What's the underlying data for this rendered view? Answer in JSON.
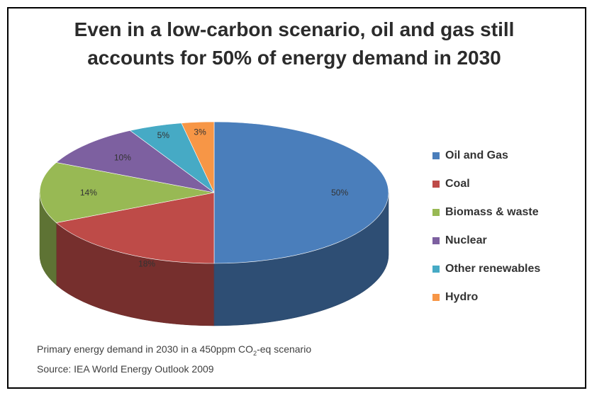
{
  "chart_data": {
    "type": "pie",
    "title_lines": [
      "Even in a low-carbon scenario, oil and gas still",
      "accounts for 50% of energy demand in 2030"
    ],
    "slices": [
      {
        "name": "Oil and Gas",
        "value": 50,
        "label": "50%",
        "color": "#4a7ebb"
      },
      {
        "name": "Coal",
        "value": 18,
        "label": "18%",
        "color": "#be4b48"
      },
      {
        "name": "Biomass & waste",
        "value": 14,
        "label": "14%",
        "color": "#98b954"
      },
      {
        "name": "Nuclear",
        "value": 10,
        "label": "10%",
        "color": "#7d60a0"
      },
      {
        "name": "Other renewables",
        "value": 5,
        "label": "5%",
        "color": "#46aac5"
      },
      {
        "name": "Hydro",
        "value": 3,
        "label": "3%",
        "color": "#f79646"
      }
    ],
    "legend_placement": "right",
    "style": "3d"
  },
  "footnote": {
    "line1_before": "Primary energy demand in 2030 in a 450ppm CO",
    "line1_sub": "2",
    "line1_after": "-eq scenario",
    "line2": "Source: IEA World  Energy Outlook  2009"
  }
}
